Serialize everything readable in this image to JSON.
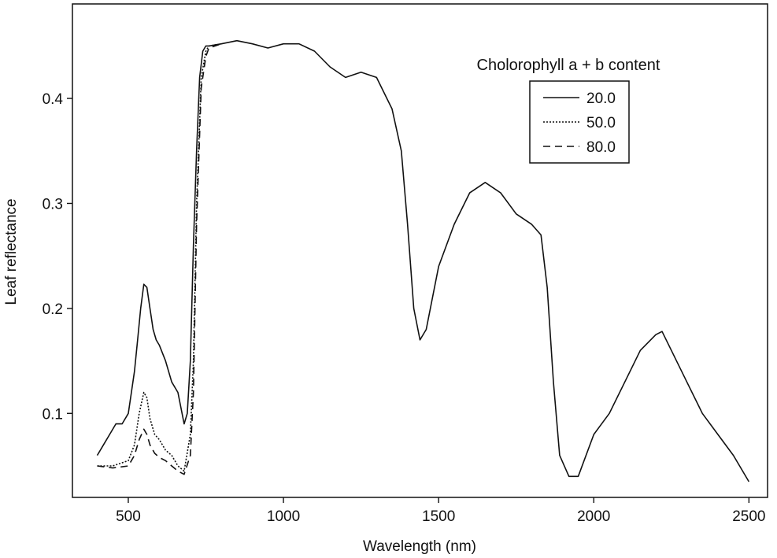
{
  "chart_data": {
    "type": "line",
    "title": "",
    "xlabel": "Wavelength (nm)",
    "ylabel": "Leaf reflectance",
    "xlim": [
      320,
      2560
    ],
    "ylim": [
      0.02,
      0.49
    ],
    "xticks": [
      500,
      1000,
      1500,
      2000,
      2500
    ],
    "yticks": [
      0.1,
      0.2,
      0.3,
      0.4
    ],
    "xtick_labels": [
      "500",
      "1000",
      "1500",
      "2000",
      "2500"
    ],
    "ytick_labels": [
      "0.1",
      "0.2",
      "0.3",
      "0.4"
    ],
    "grid": false,
    "legend": {
      "title": "Cholorophyll a + b content",
      "position": "top-right"
    },
    "series": [
      {
        "name": "20.0",
        "style": "solid",
        "x": [
          400,
          420,
          440,
          460,
          480,
          500,
          510,
          520,
          530,
          540,
          550,
          560,
          570,
          580,
          590,
          600,
          620,
          640,
          660,
          680,
          690,
          700,
          710,
          720,
          730,
          740,
          750,
          760,
          800,
          850,
          900,
          950,
          1000,
          1050,
          1100,
          1150,
          1200,
          1250,
          1300,
          1350,
          1380,
          1400,
          1420,
          1440,
          1460,
          1500,
          1550,
          1600,
          1650,
          1700,
          1750,
          1800,
          1830,
          1850,
          1870,
          1890,
          1920,
          1950,
          2000,
          2050,
          2100,
          2150,
          2200,
          2220,
          2250,
          2300,
          2350,
          2400,
          2450,
          2500
        ],
        "values": [
          0.06,
          0.07,
          0.08,
          0.09,
          0.09,
          0.1,
          0.12,
          0.14,
          0.17,
          0.2,
          0.223,
          0.22,
          0.2,
          0.18,
          0.17,
          0.165,
          0.15,
          0.13,
          0.12,
          0.09,
          0.1,
          0.15,
          0.26,
          0.35,
          0.42,
          0.445,
          0.45,
          0.45,
          0.452,
          0.455,
          0.452,
          0.448,
          0.452,
          0.452,
          0.445,
          0.43,
          0.42,
          0.425,
          0.42,
          0.39,
          0.35,
          0.28,
          0.2,
          0.17,
          0.18,
          0.24,
          0.28,
          0.31,
          0.32,
          0.31,
          0.29,
          0.28,
          0.27,
          0.22,
          0.13,
          0.06,
          0.04,
          0.04,
          0.08,
          0.1,
          0.13,
          0.16,
          0.175,
          0.178,
          0.16,
          0.13,
          0.1,
          0.08,
          0.06,
          0.035
        ]
      },
      {
        "name": "50.0",
        "style": "dotted",
        "x": [
          400,
          450,
          500,
          520,
          535,
          550,
          560,
          570,
          585,
          600,
          620,
          640,
          660,
          680,
          700,
          710,
          720,
          735,
          750,
          760,
          800
        ],
        "values": [
          0.05,
          0.05,
          0.055,
          0.07,
          0.1,
          0.12,
          0.115,
          0.095,
          0.08,
          0.075,
          0.065,
          0.06,
          0.05,
          0.045,
          0.08,
          0.15,
          0.3,
          0.42,
          0.445,
          0.45,
          0.452
        ]
      },
      {
        "name": "80.0",
        "style": "dashed",
        "x": [
          400,
          450,
          500,
          520,
          535,
          550,
          560,
          570,
          585,
          600,
          620,
          640,
          660,
          680,
          700,
          710,
          720,
          735,
          750,
          760,
          800
        ],
        "values": [
          0.05,
          0.048,
          0.05,
          0.06,
          0.075,
          0.085,
          0.08,
          0.07,
          0.062,
          0.058,
          0.055,
          0.05,
          0.045,
          0.042,
          0.06,
          0.12,
          0.28,
          0.41,
          0.44,
          0.448,
          0.452
        ]
      }
    ]
  }
}
